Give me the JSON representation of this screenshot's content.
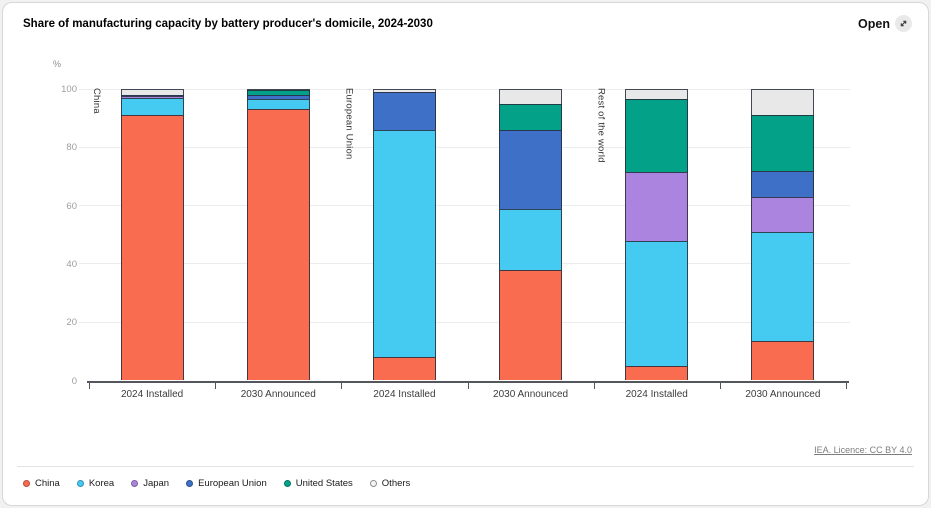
{
  "header": {
    "title": "Share of manufacturing capacity by battery producer's domicile, 2024-2030",
    "open_label": "Open"
  },
  "footer": {
    "licence": "IEA. Licence: CC BY 4.0"
  },
  "chart_data": {
    "type": "bar",
    "stacked": true,
    "title": "Share of manufacturing capacity by battery producer's domicile, 2024-2030",
    "xlabel": "",
    "ylabel": "%",
    "ylim": [
      0,
      100
    ],
    "yticks": [
      0,
      20,
      40,
      60,
      80,
      100
    ],
    "grid": true,
    "legend_position": "bottom",
    "groups": [
      {
        "label": "China",
        "start_slot": 0
      },
      {
        "label": "European Union",
        "start_slot": 2
      },
      {
        "label": "Rest of the world",
        "start_slot": 4
      }
    ],
    "categories": [
      "2024 Installed",
      "2030 Announced",
      "2024 Installed",
      "2030 Announced",
      "2024 Installed",
      "2030 Announced"
    ],
    "series": [
      {
        "name": "China",
        "color": "#f96c4f",
        "values": [
          91,
          93,
          8,
          38,
          5,
          13.5
        ]
      },
      {
        "name": "Korea",
        "color": "#45cbf2",
        "values": [
          6,
          3.5,
          78,
          21,
          43,
          37.5
        ]
      },
      {
        "name": "Japan",
        "color": "#ab84e0",
        "values": [
          0.5,
          0,
          0,
          0,
          23.5,
          12
        ]
      },
      {
        "name": "European Union",
        "color": "#3e70c8",
        "values": [
          0.5,
          1.3,
          13,
          27,
          0,
          9
        ]
      },
      {
        "name": "United States",
        "color": "#02a188",
        "values": [
          0,
          1.7,
          0,
          9,
          25,
          19
        ]
      },
      {
        "name": "Others",
        "color": "#e8e8e8",
        "values": [
          2,
          0.5,
          1,
          5,
          3.5,
          9
        ]
      }
    ]
  }
}
